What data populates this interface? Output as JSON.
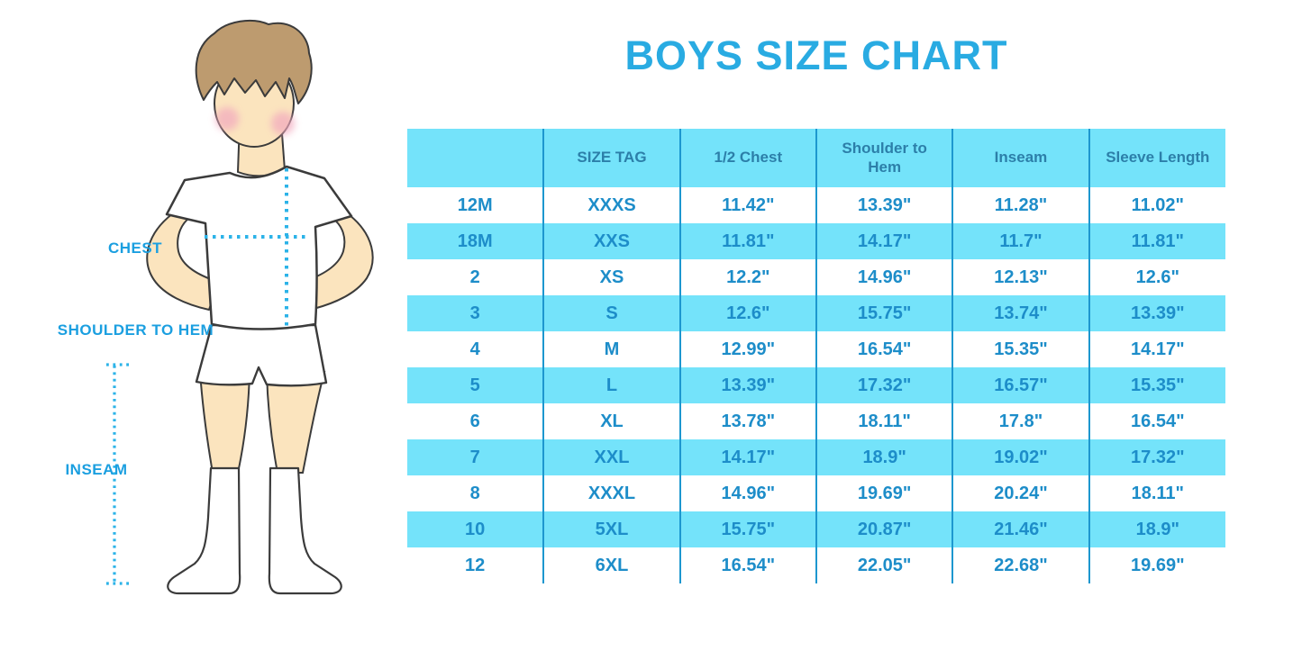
{
  "title": "BOYS SIZE CHART",
  "colors": {
    "title_blue": "#29ABE2",
    "row_cyan": "#74E3FA",
    "cell_text_blue": "#1D8DC9",
    "header_text_blue": "#2C7FA9",
    "separator_blue": "#1D97CF",
    "label_blue": "#1B9FE0",
    "dotted_line_cyan": "#2CB3E8"
  },
  "figure": {
    "labels": {
      "chest": "CHEST",
      "shoulder_to_hem": "SHOULDER TO HEM",
      "inseam": "INSEAM"
    }
  },
  "chart_data": {
    "type": "table",
    "title": "BOYS SIZE CHART",
    "columns": [
      "",
      "SIZE TAG",
      "1/2 Chest",
      "Shoulder to Hem",
      "Inseam",
      "Sleeve Length"
    ],
    "rows": [
      [
        "12M",
        "XXXS",
        "11.42\"",
        "13.39\"",
        "11.28\"",
        "11.02\""
      ],
      [
        "18M",
        "XXS",
        "11.81\"",
        "14.17\"",
        "11.7\"",
        "11.81\""
      ],
      [
        "2",
        "XS",
        "12.2\"",
        "14.96\"",
        "12.13\"",
        "12.6\""
      ],
      [
        "3",
        "S",
        "12.6\"",
        "15.75\"",
        "13.74\"",
        "13.39\""
      ],
      [
        "4",
        "M",
        "12.99\"",
        "16.54\"",
        "15.35\"",
        "14.17\""
      ],
      [
        "5",
        "L",
        "13.39\"",
        "17.32\"",
        "16.57\"",
        "15.35\""
      ],
      [
        "6",
        "XL",
        "13.78\"",
        "18.11\"",
        "17.8\"",
        "16.54\""
      ],
      [
        "7",
        "XXL",
        "14.17\"",
        "18.9\"",
        "19.02\"",
        "17.32\""
      ],
      [
        "8",
        "XXXL",
        "14.96\"",
        "19.69\"",
        "20.24\"",
        "18.11\""
      ],
      [
        "10",
        "5XL",
        "15.75\"",
        "20.87\"",
        "21.46\"",
        "18.9\""
      ],
      [
        "12",
        "6XL",
        "16.54\"",
        "22.05\"",
        "22.68\"",
        "19.69\""
      ]
    ]
  }
}
